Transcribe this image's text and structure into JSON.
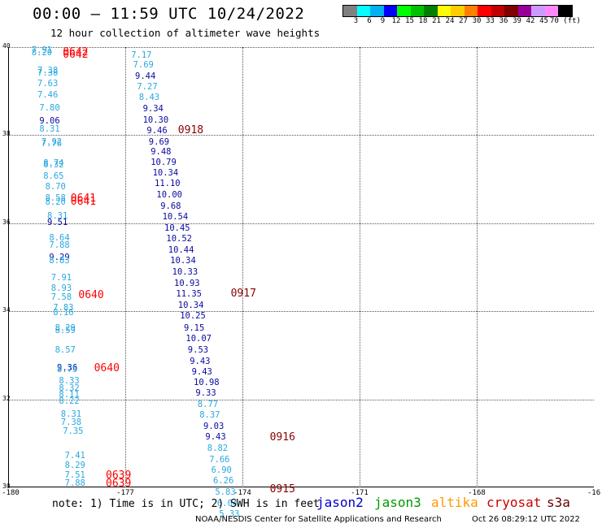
{
  "title": "00:00 – 11:59 UTC 10/24/2022",
  "subtitle": "12 hour collection of altimeter wave heights",
  "legend": {
    "labels": [
      "3",
      "6",
      "9",
      "12",
      "15",
      "18",
      "21",
      "24",
      "27",
      "30",
      "33",
      "36",
      "39",
      "42",
      "45",
      "70 (ft)"
    ],
    "colors": [
      "#808080",
      "#00ffff",
      "#00b0f0",
      "#0000ff",
      "#00ff00",
      "#00c000",
      "#008000",
      "#ffff00",
      "#ffcc00",
      "#ff8000",
      "#ff0000",
      "#c00000",
      "#800000",
      "#990099",
      "#cc99ff",
      "#ff88ff",
      "#000000"
    ]
  },
  "axes": {
    "lat_labels": [
      "40",
      "38",
      "36",
      "34",
      "32",
      "30"
    ],
    "lon_labels": [
      "-180",
      "-177",
      "-174",
      "-171",
      "-168",
      "-16"
    ]
  },
  "observations": [
    {
      "lat": 39.9,
      "lon": -179.4,
      "text": "7.91",
      "color": "#29a8e0"
    },
    {
      "lat": 39.85,
      "lon": -179.4,
      "text": "8.20",
      "color": "#29a8e0"
    },
    {
      "lat": 39.45,
      "lon": -179.25,
      "text": "7.38",
      "color": "#29a8e0"
    },
    {
      "lat": 39.4,
      "lon": -179.25,
      "text": "7.38",
      "color": "#29a8e0"
    },
    {
      "lat": 39.15,
      "lon": -179.25,
      "text": "7.63",
      "color": "#29a8e0"
    },
    {
      "lat": 38.9,
      "lon": -179.25,
      "text": "7.46",
      "color": "#29a8e0"
    },
    {
      "lat": 38.6,
      "lon": -179.2,
      "text": "7.80",
      "color": "#29a8e0"
    },
    {
      "lat": 38.3,
      "lon": -179.2,
      "text": "9.06",
      "color": "#0a0aa0"
    },
    {
      "lat": 38.12,
      "lon": -179.2,
      "text": "8.31",
      "color": "#29a8e0"
    },
    {
      "lat": 37.83,
      "lon": -179.15,
      "text": "7.92",
      "color": "#29a8e0"
    },
    {
      "lat": 37.78,
      "lon": -179.15,
      "text": "7.76",
      "color": "#29a8e0"
    },
    {
      "lat": 37.35,
      "lon": -179.1,
      "text": "8.74",
      "color": "#29a8e0"
    },
    {
      "lat": 37.3,
      "lon": -179.1,
      "text": "8.32",
      "color": "#29a8e0"
    },
    {
      "lat": 37.05,
      "lon": -179.1,
      "text": "8.65",
      "color": "#29a8e0"
    },
    {
      "lat": 36.8,
      "lon": -179.05,
      "text": "8.70",
      "color": "#29a8e0"
    },
    {
      "lat": 36.55,
      "lon": -179.05,
      "text": "8.58",
      "color": "#29a8e0"
    },
    {
      "lat": 36.45,
      "lon": -179.05,
      "text": "8.20",
      "color": "#29a8e0"
    },
    {
      "lat": 36.15,
      "lon": -179.0,
      "text": "8.31",
      "color": "#29a8e0"
    },
    {
      "lat": 36.0,
      "lon": -179.0,
      "text": "9.51",
      "color": "#0a0aa0"
    },
    {
      "lat": 35.65,
      "lon": -178.95,
      "text": "8.64",
      "color": "#29a8e0"
    },
    {
      "lat": 35.48,
      "lon": -178.95,
      "text": "7.88",
      "color": "#29a8e0"
    },
    {
      "lat": 35.2,
      "lon": -178.95,
      "text": "9.29",
      "color": "#0a0aa0"
    },
    {
      "lat": 35.13,
      "lon": -178.95,
      "text": "8.83",
      "color": "#29a8e0"
    },
    {
      "lat": 34.75,
      "lon": -178.9,
      "text": "7.91",
      "color": "#29a8e0"
    },
    {
      "lat": 34.5,
      "lon": -178.9,
      "text": "8.93",
      "color": "#29a8e0"
    },
    {
      "lat": 34.3,
      "lon": -178.9,
      "text": "7.58",
      "color": "#29a8e0"
    },
    {
      "lat": 34.05,
      "lon": -178.85,
      "text": "7.83",
      "color": "#29a8e0"
    },
    {
      "lat": 33.95,
      "lon": -178.85,
      "text": "8.16",
      "color": "#29a8e0"
    },
    {
      "lat": 33.6,
      "lon": -178.8,
      "text": "8.29",
      "color": "#29a8e0"
    },
    {
      "lat": 33.55,
      "lon": -178.8,
      "text": "8.59",
      "color": "#29a8e0"
    },
    {
      "lat": 33.1,
      "lon": -178.8,
      "text": "8.57",
      "color": "#29a8e0"
    },
    {
      "lat": 32.7,
      "lon": -178.75,
      "text": "9.36",
      "color": "#0a0aa0"
    },
    {
      "lat": 32.65,
      "lon": -178.75,
      "text": "8.75",
      "color": "#29a8e0"
    },
    {
      "lat": 32.4,
      "lon": -178.7,
      "text": "8.33",
      "color": "#29a8e0"
    },
    {
      "lat": 32.23,
      "lon": -178.7,
      "text": "8.32",
      "color": "#29a8e0"
    },
    {
      "lat": 32.08,
      "lon": -178.7,
      "text": "8.11",
      "color": "#29a8e0"
    },
    {
      "lat": 31.93,
      "lon": -178.7,
      "text": "8.22",
      "color": "#29a8e0"
    },
    {
      "lat": 31.65,
      "lon": -178.65,
      "text": "8.31",
      "color": "#29a8e0"
    },
    {
      "lat": 31.45,
      "lon": -178.65,
      "text": "7.38",
      "color": "#29a8e0"
    },
    {
      "lat": 31.25,
      "lon": -178.6,
      "text": "7.35",
      "color": "#29a8e0"
    },
    {
      "lat": 30.7,
      "lon": -178.55,
      "text": "7.41",
      "color": "#29a8e0"
    },
    {
      "lat": 30.48,
      "lon": -178.55,
      "text": "8.29",
      "color": "#29a8e0"
    },
    {
      "lat": 30.25,
      "lon": -178.55,
      "text": "7.51",
      "color": "#29a8e0"
    },
    {
      "lat": 30.07,
      "lon": -178.55,
      "text": "7.88",
      "color": "#29a8e0"
    },
    {
      "lat": 39.8,
      "lon": -176.85,
      "text": "7.17",
      "color": "#29a8e0"
    },
    {
      "lat": 39.58,
      "lon": -176.8,
      "text": "7.69",
      "color": "#29a8e0"
    },
    {
      "lat": 39.32,
      "lon": -176.75,
      "text": "9.44",
      "color": "#0a0aa0"
    },
    {
      "lat": 39.08,
      "lon": -176.7,
      "text": "7.27",
      "color": "#29a8e0"
    },
    {
      "lat": 38.83,
      "lon": -176.65,
      "text": "8.43",
      "color": "#29a8e0"
    },
    {
      "lat": 38.58,
      "lon": -176.55,
      "text": "9.34",
      "color": "#0a0aa0"
    },
    {
      "lat": 38.33,
      "lon": -176.55,
      "text": "10.30",
      "color": "#0a0aa0"
    },
    {
      "lat": 38.08,
      "lon": -176.45,
      "text": "9.46",
      "color": "#0a0aa0"
    },
    {
      "lat": 37.83,
      "lon": -176.4,
      "text": "9.69",
      "color": "#0a0aa0"
    },
    {
      "lat": 37.6,
      "lon": -176.35,
      "text": "9.48",
      "color": "#0a0aa0"
    },
    {
      "lat": 37.37,
      "lon": -176.35,
      "text": "10.79",
      "color": "#0a0aa0"
    },
    {
      "lat": 37.12,
      "lon": -176.3,
      "text": "10.34",
      "color": "#0a0aa0"
    },
    {
      "lat": 36.88,
      "lon": -176.25,
      "text": "11.10",
      "color": "#0a0aa0"
    },
    {
      "lat": 36.62,
      "lon": -176.2,
      "text": "10.00",
      "color": "#0a0aa0"
    },
    {
      "lat": 36.37,
      "lon": -176.1,
      "text": "9.68",
      "color": "#0a0aa0"
    },
    {
      "lat": 36.12,
      "lon": -176.05,
      "text": "10.54",
      "color": "#0a0aa0"
    },
    {
      "lat": 35.87,
      "lon": -176.0,
      "text": "10.45",
      "color": "#0a0aa0"
    },
    {
      "lat": 35.62,
      "lon": -175.95,
      "text": "10.52",
      "color": "#0a0aa0"
    },
    {
      "lat": 35.37,
      "lon": -175.9,
      "text": "10.44",
      "color": "#0a0aa0"
    },
    {
      "lat": 35.12,
      "lon": -175.85,
      "text": "10.34",
      "color": "#0a0aa0"
    },
    {
      "lat": 34.87,
      "lon": -175.8,
      "text": "10.33",
      "color": "#0a0aa0"
    },
    {
      "lat": 34.62,
      "lon": -175.75,
      "text": "10.93",
      "color": "#0a0aa0"
    },
    {
      "lat": 34.37,
      "lon": -175.7,
      "text": "11.35",
      "color": "#0a0aa0"
    },
    {
      "lat": 34.12,
      "lon": -175.65,
      "text": "10.34",
      "color": "#0a0aa0"
    },
    {
      "lat": 33.87,
      "lon": -175.6,
      "text": "10.25",
      "color": "#0a0aa0"
    },
    {
      "lat": 33.6,
      "lon": -175.5,
      "text": "9.15",
      "color": "#0a0aa0"
    },
    {
      "lat": 33.35,
      "lon": -175.45,
      "text": "10.07",
      "color": "#0a0aa0"
    },
    {
      "lat": 33.1,
      "lon": -175.4,
      "text": "9.53",
      "color": "#0a0aa0"
    },
    {
      "lat": 32.85,
      "lon": -175.35,
      "text": "9.43",
      "color": "#0a0aa0"
    },
    {
      "lat": 32.6,
      "lon": -175.3,
      "text": "9.43",
      "color": "#0a0aa0"
    },
    {
      "lat": 32.37,
      "lon": -175.25,
      "text": "10.98",
      "color": "#0a0aa0"
    },
    {
      "lat": 32.12,
      "lon": -175.2,
      "text": "9.33",
      "color": "#0a0aa0"
    },
    {
      "lat": 31.87,
      "lon": -175.15,
      "text": "8.77",
      "color": "#29a8e0"
    },
    {
      "lat": 31.62,
      "lon": -175.1,
      "text": "8.37",
      "color": "#29a8e0"
    },
    {
      "lat": 31.37,
      "lon": -175.0,
      "text": "9.03",
      "color": "#0a0aa0"
    },
    {
      "lat": 31.12,
      "lon": -174.95,
      "text": "9.43",
      "color": "#0a0aa0"
    },
    {
      "lat": 30.87,
      "lon": -174.9,
      "text": "8.82",
      "color": "#29a8e0"
    },
    {
      "lat": 30.6,
      "lon": -174.85,
      "text": "7.66",
      "color": "#29a8e0"
    },
    {
      "lat": 30.37,
      "lon": -174.8,
      "text": "6.90",
      "color": "#29a8e0"
    },
    {
      "lat": 30.12,
      "lon": -174.75,
      "text": "6.26",
      "color": "#29a8e0"
    },
    {
      "lat": 29.87,
      "lon": -174.7,
      "text": "5.83",
      "color": "#29a8e0"
    },
    {
      "lat": 29.62,
      "lon": -174.65,
      "text": "6.04",
      "color": "#29a8e0"
    },
    {
      "lat": 29.37,
      "lon": -174.6,
      "text": "5.33",
      "color": "#29a8e0"
    }
  ],
  "times": [
    {
      "lat": 39.88,
      "lon": -178.6,
      "text": "0642",
      "color": "#ff0000"
    },
    {
      "lat": 39.82,
      "lon": -178.6,
      "text": "0642",
      "color": "#ff0000"
    },
    {
      "lat": 36.55,
      "lon": -178.4,
      "text": "0641",
      "color": "#ff0000"
    },
    {
      "lat": 36.48,
      "lon": -178.4,
      "text": "0641",
      "color": "#ff0000"
    },
    {
      "lat": 34.35,
      "lon": -178.2,
      "text": "0640",
      "color": "#ff0000"
    },
    {
      "lat": 32.7,
      "lon": -177.8,
      "text": "0640",
      "color": "#ff0000"
    },
    {
      "lat": 30.25,
      "lon": -177.5,
      "text": "0639",
      "color": "#ff0000"
    },
    {
      "lat": 30.08,
      "lon": -177.5,
      "text": "0639",
      "color": "#ff0000"
    },
    {
      "lat": 38.1,
      "lon": -175.65,
      "text": "0918",
      "color": "#8b0000"
    },
    {
      "lat": 34.4,
      "lon": -174.3,
      "text": "0917",
      "color": "#8b0000"
    },
    {
      "lat": 31.13,
      "lon": -173.3,
      "text": "0916",
      "color": "#8b0000"
    },
    {
      "lat": 29.95,
      "lon": -173.3,
      "text": "0915",
      "color": "#8b0000"
    }
  ],
  "note": "note: 1) Time is in UTC; 2) SWH is in feet",
  "satellites": [
    {
      "name": "jason2",
      "color": "#0000cc"
    },
    {
      "name": "jason3",
      "color": "#009900"
    },
    {
      "name": "altika",
      "color": "#ff9900"
    },
    {
      "name": "cryosat",
      "color": "#cc0000"
    },
    {
      "name": "s3a",
      "color": "#660000"
    }
  ],
  "credit": "NOAA/NESDIS Center for Satellite Applications and Research",
  "timestamp": "Oct 26 08:29:12 UTC 2022"
}
